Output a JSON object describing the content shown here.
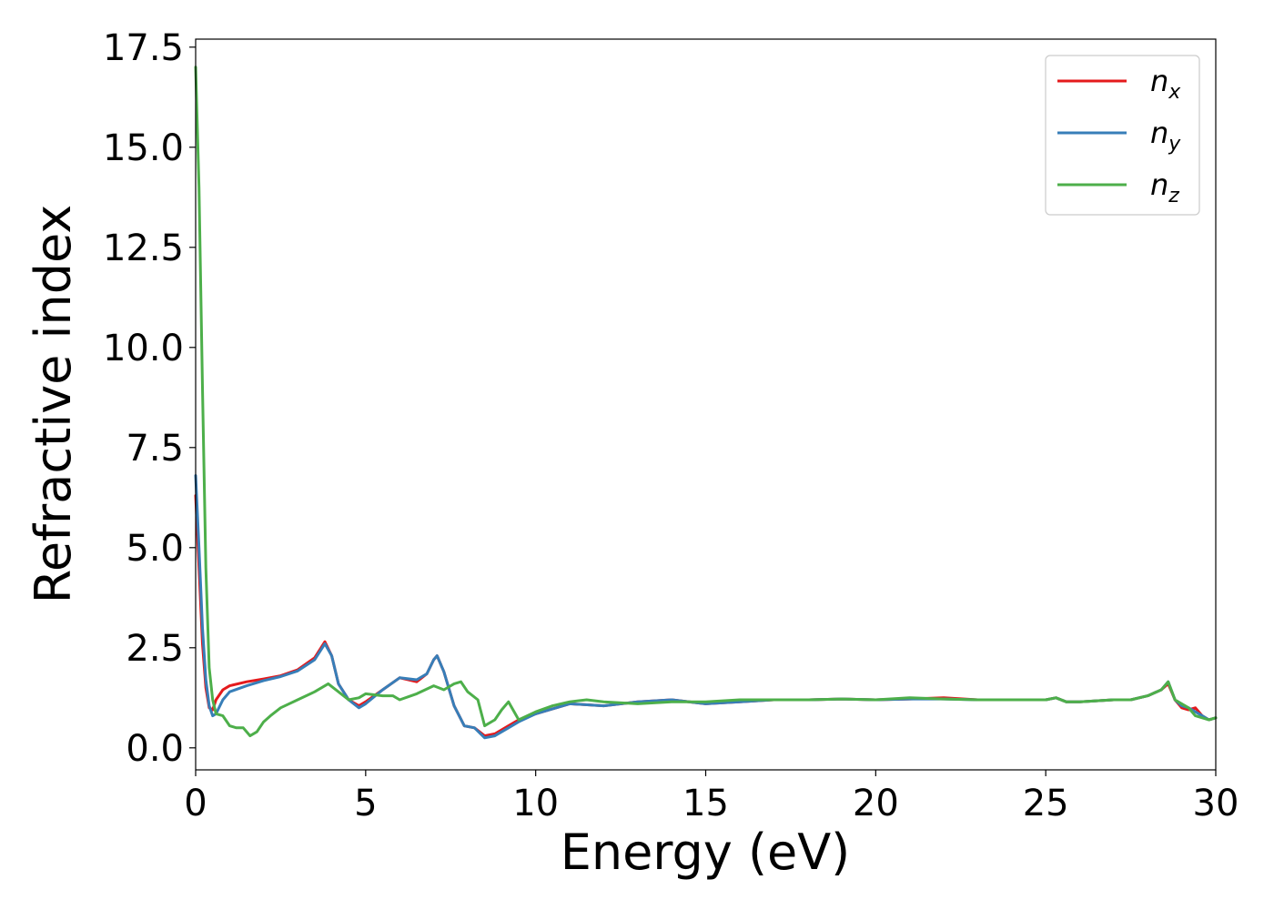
{
  "chart_data": {
    "type": "line",
    "xlabel": "Energy (eV)",
    "ylabel": "Refractive index",
    "xlim": [
      0,
      30
    ],
    "ylim": [
      -0.55,
      17.7
    ],
    "xticks": [
      0,
      5,
      10,
      15,
      20,
      25,
      30
    ],
    "xtick_labels": [
      "0",
      "5",
      "10",
      "15",
      "20",
      "25",
      "30"
    ],
    "yticks": [
      0.0,
      2.5,
      5.0,
      7.5,
      10.0,
      12.5,
      15.0,
      17.5
    ],
    "ytick_labels": [
      "0.0",
      "2.5",
      "5.0",
      "7.5",
      "10.0",
      "12.5",
      "15.0",
      "17.5"
    ],
    "grid": false,
    "legend_position": "top-right",
    "series": [
      {
        "name": "n",
        "subscript": "x",
        "color": "#e41a1c",
        "x": [
          0.0,
          0.1,
          0.2,
          0.3,
          0.4,
          0.5,
          0.6,
          0.8,
          1.0,
          1.5,
          2.0,
          2.5,
          3.0,
          3.5,
          3.8,
          4.0,
          4.2,
          4.5,
          4.8,
          5.0,
          5.5,
          6.0,
          6.5,
          6.8,
          7.0,
          7.1,
          7.3,
          7.6,
          7.9,
          8.2,
          8.5,
          8.8,
          9.2,
          9.5,
          10.0,
          11.0,
          12.0,
          13.0,
          14.0,
          15.0,
          16.0,
          17.0,
          18.0,
          19.0,
          20.0,
          21.0,
          22.0,
          23.0,
          24.0,
          25.0,
          25.3,
          25.6,
          26.0,
          27.0,
          27.5,
          28.0,
          28.4,
          28.6,
          28.8,
          29.0,
          29.2,
          29.4,
          29.6,
          29.8,
          30.0
        ],
        "y": [
          6.3,
          4.5,
          2.6,
          1.5,
          1.0,
          0.95,
          1.2,
          1.45,
          1.55,
          1.65,
          1.72,
          1.8,
          1.95,
          2.25,
          2.65,
          2.3,
          1.6,
          1.2,
          1.05,
          1.15,
          1.45,
          1.75,
          1.65,
          1.85,
          2.2,
          2.3,
          1.9,
          1.05,
          0.55,
          0.5,
          0.3,
          0.35,
          0.55,
          0.7,
          0.85,
          1.1,
          1.05,
          1.15,
          1.2,
          1.1,
          1.15,
          1.2,
          1.2,
          1.22,
          1.2,
          1.22,
          1.25,
          1.2,
          1.2,
          1.2,
          1.25,
          1.15,
          1.15,
          1.2,
          1.2,
          1.3,
          1.45,
          1.6,
          1.2,
          1.0,
          0.95,
          1.0,
          0.8,
          0.7,
          0.75
        ]
      },
      {
        "name": "n",
        "subscript": "y",
        "color": "#377eb8",
        "x": [
          0.0,
          0.1,
          0.2,
          0.3,
          0.4,
          0.5,
          0.6,
          0.8,
          1.0,
          1.5,
          2.0,
          2.5,
          3.0,
          3.5,
          3.8,
          4.0,
          4.2,
          4.5,
          4.8,
          5.0,
          5.5,
          6.0,
          6.5,
          6.8,
          7.0,
          7.1,
          7.3,
          7.6,
          7.9,
          8.2,
          8.5,
          8.8,
          9.2,
          9.5,
          10.0,
          11.0,
          12.0,
          13.0,
          14.0,
          15.0,
          16.0,
          17.0,
          18.0,
          19.0,
          20.0,
          21.0,
          22.0,
          23.0,
          24.0,
          25.0,
          25.3,
          25.6,
          26.0,
          27.0,
          27.5,
          28.0,
          28.4,
          28.6,
          28.8,
          29.0,
          29.2,
          29.4,
          29.6,
          29.8,
          30.0
        ],
        "y": [
          6.8,
          5.0,
          3.0,
          1.7,
          1.05,
          0.8,
          0.85,
          1.2,
          1.4,
          1.55,
          1.68,
          1.78,
          1.92,
          2.2,
          2.6,
          2.3,
          1.6,
          1.2,
          1.0,
          1.1,
          1.45,
          1.75,
          1.7,
          1.85,
          2.2,
          2.3,
          1.9,
          1.05,
          0.55,
          0.5,
          0.25,
          0.3,
          0.5,
          0.65,
          0.85,
          1.1,
          1.05,
          1.15,
          1.2,
          1.1,
          1.15,
          1.2,
          1.2,
          1.22,
          1.2,
          1.22,
          1.22,
          1.2,
          1.2,
          1.2,
          1.25,
          1.15,
          1.15,
          1.2,
          1.2,
          1.3,
          1.45,
          1.65,
          1.2,
          1.05,
          1.0,
          0.9,
          0.8,
          0.7,
          0.75
        ]
      },
      {
        "name": "n",
        "subscript": "z",
        "color": "#4daf4a",
        "x": [
          0.0,
          0.1,
          0.2,
          0.3,
          0.4,
          0.5,
          0.6,
          0.8,
          1.0,
          1.2,
          1.4,
          1.6,
          1.8,
          2.0,
          2.2,
          2.5,
          3.0,
          3.5,
          3.9,
          4.2,
          4.5,
          4.8,
          5.0,
          5.5,
          5.8,
          6.0,
          6.5,
          7.0,
          7.3,
          7.6,
          7.8,
          8.0,
          8.3,
          8.5,
          8.8,
          9.0,
          9.2,
          9.5,
          10.0,
          10.5,
          11.0,
          11.5,
          12.0,
          13.0,
          14.0,
          15.0,
          16.0,
          17.0,
          18.0,
          19.0,
          20.0,
          21.0,
          22.0,
          23.0,
          24.0,
          25.0,
          25.3,
          25.6,
          26.0,
          27.0,
          27.5,
          28.0,
          28.4,
          28.6,
          28.8,
          29.0,
          29.2,
          29.4,
          29.6,
          29.8,
          30.0
        ],
        "y": [
          17.0,
          14.0,
          9.0,
          4.5,
          2.0,
          1.2,
          0.85,
          0.8,
          0.55,
          0.5,
          0.5,
          0.3,
          0.4,
          0.65,
          0.8,
          1.0,
          1.2,
          1.4,
          1.6,
          1.4,
          1.2,
          1.25,
          1.35,
          1.3,
          1.3,
          1.2,
          1.35,
          1.55,
          1.45,
          1.6,
          1.65,
          1.4,
          1.2,
          0.55,
          0.7,
          0.95,
          1.15,
          0.7,
          0.9,
          1.05,
          1.15,
          1.2,
          1.15,
          1.1,
          1.15,
          1.15,
          1.2,
          1.2,
          1.2,
          1.22,
          1.2,
          1.25,
          1.22,
          1.2,
          1.2,
          1.2,
          1.25,
          1.15,
          1.15,
          1.2,
          1.2,
          1.3,
          1.45,
          1.65,
          1.2,
          1.1,
          1.0,
          0.8,
          0.75,
          0.7,
          0.75
        ]
      }
    ]
  }
}
